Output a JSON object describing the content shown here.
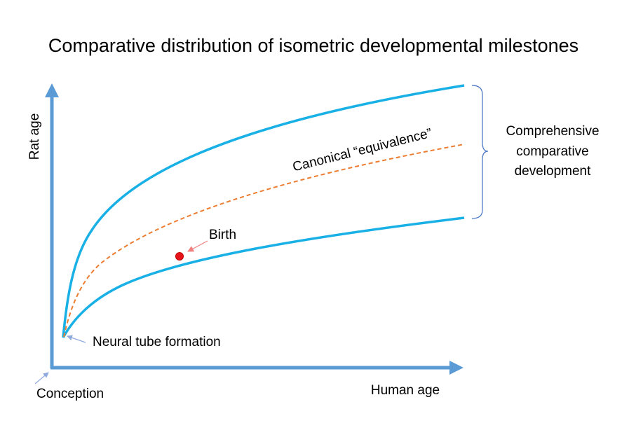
{
  "title": "Comparative distribution of isometric developmental milestones",
  "axes": {
    "y_label": "Rat age",
    "x_label": "Human age"
  },
  "annotations": {
    "conception": "Conception",
    "neural_tube": "Neural tube formation",
    "birth": "Birth",
    "canonical": "Canonical “equivalence”",
    "bracket_label": [
      "Comprehensive",
      "comparative",
      "development"
    ]
  },
  "colors": {
    "axis": "#5b9bd5",
    "envelope_curves": "#19b0e6",
    "canonical_curve": "#ed7d31",
    "birth_point": "#e8141c",
    "birth_arrow": "#f08080",
    "bracket": "#4472c4",
    "pointer_arrows": "#8faadc"
  }
}
